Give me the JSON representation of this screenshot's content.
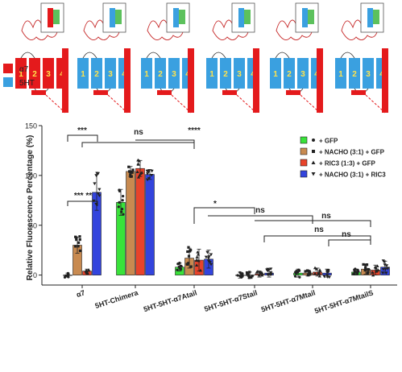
{
  "legend_key": {
    "items": [
      {
        "label": "α7",
        "color": "#e41a1c"
      },
      {
        "label": "5HT",
        "color": "#3aa0e0"
      }
    ]
  },
  "schematics": [
    {
      "name": "a7",
      "segments": [
        "1",
        "2",
        "3",
        "4"
      ],
      "colors": [
        "#e41a1c",
        "#e41a1c",
        "#e41a1c",
        "#e41a1c"
      ]
    },
    {
      "name": "5HT-Chimera",
      "segments": [
        "1",
        "2",
        "3",
        "4"
      ],
      "colors": [
        "#3aa0e0",
        "#3aa0e0",
        "#3aa0e0",
        "#3aa0e0"
      ]
    },
    {
      "name": "5HT-5HT-a7Atail",
      "segments": [
        "1",
        "2",
        "3",
        "4"
      ],
      "colors": [
        "#3aa0e0",
        "#3aa0e0",
        "#3aa0e0",
        "#3aa0e0"
      ]
    },
    {
      "name": "5HT-5HT-a7Stail",
      "segments": [
        "1",
        "2",
        "3",
        "4"
      ],
      "colors": [
        "#3aa0e0",
        "#3aa0e0",
        "#3aa0e0",
        "#3aa0e0"
      ]
    },
    {
      "name": "5HT-5HT-a7Mtail",
      "segments": [
        "1",
        "2",
        "3",
        "4"
      ],
      "colors": [
        "#3aa0e0",
        "#3aa0e0",
        "#3aa0e0",
        "#3aa0e0"
      ]
    },
    {
      "name": "5HT-5HT-a7MtailS",
      "segments": [
        "1",
        "2",
        "3",
        "4"
      ],
      "colors": [
        "#3aa0e0",
        "#3aa0e0",
        "#3aa0e0",
        "#3aa0e0"
      ]
    }
  ],
  "chart_data": {
    "type": "bar",
    "ylabel": "Relative Fluorescence Percentage (%)",
    "ylim": [
      -10,
      150
    ],
    "yticks": [
      0,
      50,
      100,
      150
    ],
    "categories": [
      "α7",
      "5HT-Chimera",
      "5HT-5HT-α7Atail",
      "5HT-5HT-α7Stail",
      "5HT-5HT-α7Mtail",
      "5HT-5HT-α7MtailS"
    ],
    "legend_position": "top-right",
    "series": [
      {
        "name": "+ GFP",
        "color": "#39e23a",
        "marker": "circle",
        "values": [
          0,
          73,
          8,
          0,
          2,
          3
        ],
        "errors": [
          2,
          13,
          4,
          3,
          4,
          3
        ]
      },
      {
        "name": "+ NACHO (3:1) + GFP",
        "color": "#c88a50",
        "marker": "square",
        "values": [
          30,
          104,
          17,
          0,
          2,
          6
        ],
        "errors": [
          8,
          5,
          10,
          3,
          3,
          5
        ]
      },
      {
        "name": "+ RIC3 (1:3) + GFP",
        "color": "#e8432a",
        "marker": "triangle-up",
        "values": [
          4,
          107,
          15,
          1,
          3,
          5
        ],
        "errors": [
          2,
          8,
          11,
          3,
          4,
          5
        ]
      },
      {
        "name": "+ NACHO (3:1) + RIC3",
        "color": "#3344dd",
        "marker": "triangle-down",
        "values": [
          83,
          101,
          16,
          2,
          2,
          8
        ],
        "errors": [
          18,
          5,
          9,
          4,
          4,
          6
        ]
      }
    ],
    "significance": [
      "*** **",
      "***",
      "ns",
      "****",
      "*",
      "ns",
      "ns",
      "ns",
      "ns"
    ]
  }
}
